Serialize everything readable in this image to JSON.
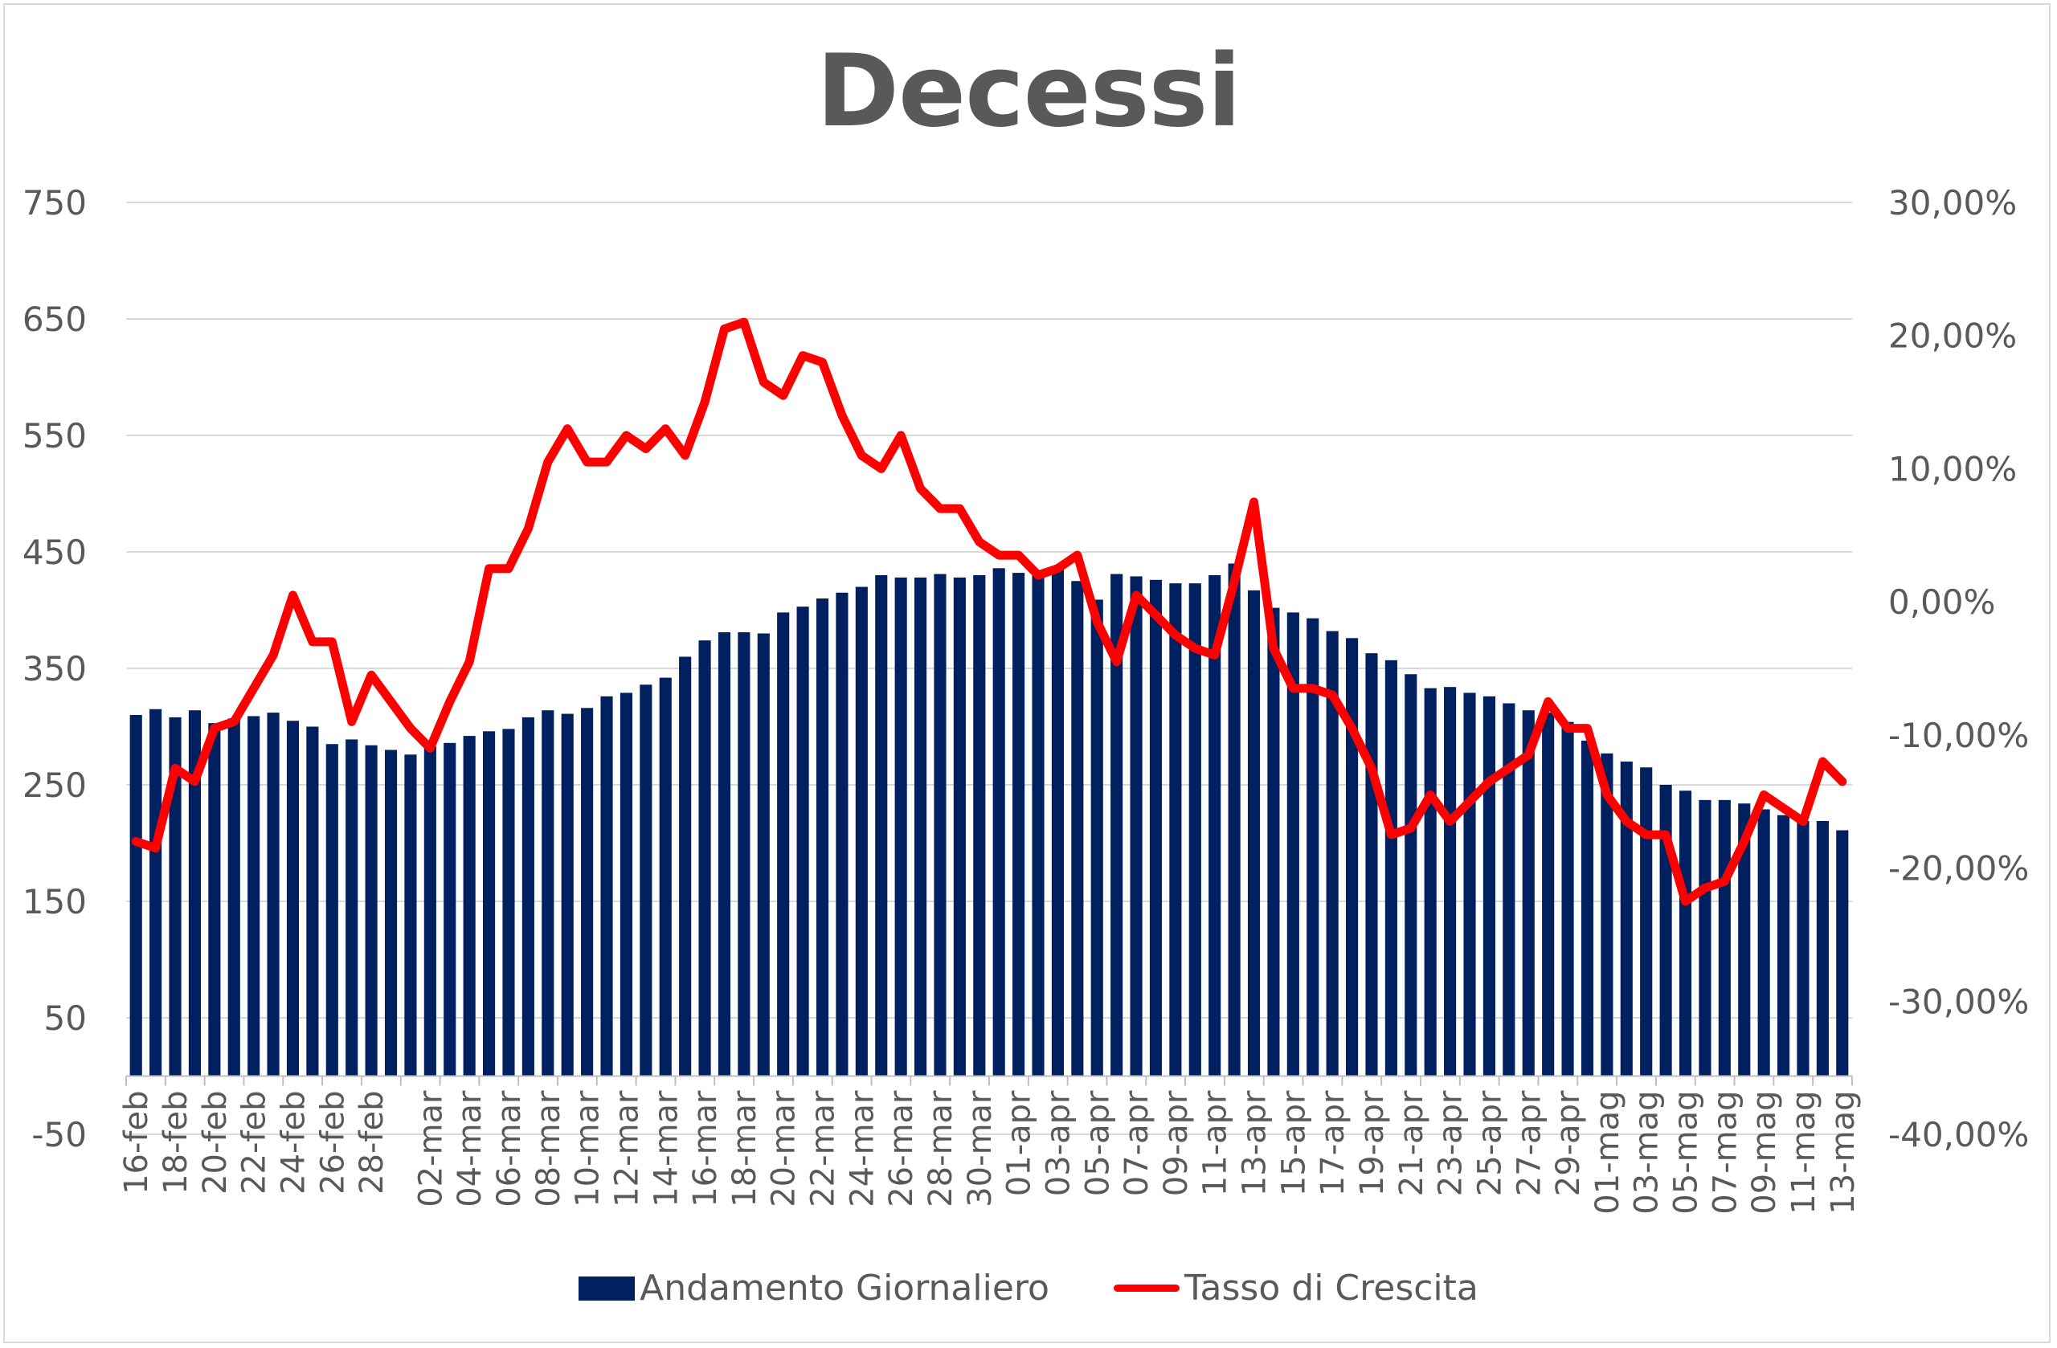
{
  "chart_data": {
    "type": "bar",
    "title": "Decessi",
    "categories": [
      "16-feb",
      "17-feb",
      "18-feb",
      "19-feb",
      "20-feb",
      "21-feb",
      "22-feb",
      "23-feb",
      "24-feb",
      "25-feb",
      "26-feb",
      "27-feb",
      "28-feb",
      "29-feb",
      "01-mar",
      "02-mar",
      "03-mar",
      "04-mar",
      "05-mar",
      "06-mar",
      "07-mar",
      "08-mar",
      "09-mar",
      "10-mar",
      "11-mar",
      "12-mar",
      "13-mar",
      "14-mar",
      "15-mar",
      "16-mar",
      "17-mar",
      "18-mar",
      "19-mar",
      "20-mar",
      "21-mar",
      "22-mar",
      "23-mar",
      "24-mar",
      "25-mar",
      "26-mar",
      "27-mar",
      "28-mar",
      "29-mar",
      "30-mar",
      "31-mar",
      "01-apr",
      "02-apr",
      "03-apr",
      "04-apr",
      "05-apr",
      "06-apr",
      "07-apr",
      "08-apr",
      "09-apr",
      "10-apr",
      "11-apr",
      "12-apr",
      "13-apr",
      "14-apr",
      "15-apr",
      "16-apr",
      "17-apr",
      "18-apr",
      "19-apr",
      "20-apr",
      "21-apr",
      "22-apr",
      "23-apr",
      "24-apr",
      "25-apr",
      "26-apr",
      "27-apr",
      "28-apr",
      "29-apr",
      "30-apr",
      "01-mag",
      "02-mag",
      "03-mag",
      "04-mag",
      "05-mag",
      "06-mag",
      "07-mag",
      "08-mag",
      "09-mag",
      "10-mag",
      "11-mag",
      "12-mag",
      "13-mag"
    ],
    "tick_labels": [
      "16-feb",
      "18-feb",
      "20-feb",
      "22-feb",
      "24-feb",
      "26-feb",
      "28-feb",
      "02-mar",
      "04-mar",
      "06-mar",
      "08-mar",
      "10-mar",
      "12-mar",
      "14-mar",
      "16-mar",
      "18-mar",
      "20-mar",
      "22-mar",
      "24-mar",
      "26-mar",
      "28-mar",
      "30-mar",
      "01-apr",
      "03-apr",
      "05-apr",
      "07-apr",
      "09-apr",
      "11-apr",
      "13-apr",
      "15-apr",
      "17-apr",
      "19-apr",
      "21-apr",
      "23-apr",
      "25-apr",
      "27-apr",
      "29-apr",
      "01-mag",
      "03-mag",
      "05-mag",
      "07-mag",
      "09-mag",
      "11-mag",
      "13-mag"
    ],
    "series": [
      {
        "name": "Andamento Giornaliero",
        "type": "bar",
        "axis": "left",
        "color": "#002060",
        "values": [
          310,
          315,
          308,
          314,
          303,
          307,
          309,
          312,
          305,
          300,
          285,
          289,
          284,
          280,
          276,
          283,
          286,
          292,
          296,
          298,
          308,
          314,
          311,
          316,
          326,
          329,
          336,
          342,
          360,
          374,
          381,
          381,
          380,
          398,
          403,
          410,
          415,
          420,
          430,
          428,
          428,
          431,
          428,
          430,
          436,
          432,
          430,
          435,
          425,
          409,
          431,
          429,
          426,
          423,
          423,
          430,
          440,
          417,
          402,
          398,
          393,
          382,
          376,
          363,
          357,
          345,
          333,
          334,
          329,
          326,
          320,
          314,
          312,
          304,
          288,
          277,
          270,
          265,
          250,
          245,
          237,
          237,
          234,
          229,
          224,
          219,
          219,
          211
        ]
      },
      {
        "name": "Tasso di Crescita",
        "type": "line",
        "axis": "right",
        "color": "#ff0000",
        "values": [
          -18.0,
          -18.5,
          -12.5,
          -13.5,
          -9.5,
          -9.0,
          -6.5,
          -4.0,
          0.5,
          -3.0,
          -3.0,
          -9.0,
          -5.5,
          -7.5,
          -9.5,
          -11.0,
          -7.5,
          -4.5,
          2.5,
          2.5,
          5.5,
          10.5,
          13.0,
          10.5,
          10.5,
          12.5,
          11.5,
          13.0,
          11.0,
          15.0,
          20.5,
          21.0,
          16.5,
          15.5,
          18.5,
          18.0,
          14.0,
          11.0,
          10.0,
          12.5,
          8.5,
          7.0,
          7.0,
          4.5,
          3.5,
          3.5,
          2.0,
          2.5,
          3.5,
          -1.5,
          -4.5,
          0.5,
          -1.0,
          -2.5,
          -3.5,
          -4.0,
          1.5,
          7.5,
          -3.5,
          -6.5,
          -6.5,
          -7.0,
          -9.5,
          -12.5,
          -17.5,
          -17.0,
          -14.5,
          -16.5,
          -15.0,
          -13.5,
          -12.5,
          -11.5,
          -7.5,
          -9.5,
          -9.5,
          -14.5,
          -16.5,
          -17.5,
          -17.5,
          -22.5,
          -21.5,
          -21.0,
          -18.0,
          -14.5,
          -15.5,
          -16.5,
          -12.0,
          -13.5
        ]
      }
    ],
    "y_left": {
      "min": -50,
      "max": 750,
      "ticks": [
        "750",
        "650",
        "550",
        "450",
        "350",
        "250",
        "150",
        "50",
        "-50"
      ]
    },
    "y_right": {
      "min": -40,
      "max": 30,
      "unit": "%",
      "ticks": [
        "30,00%",
        "20,00%",
        "10,00%",
        "0,00%",
        "-10,00%",
        "-20,00%",
        "-30,00%",
        "-40,00%"
      ]
    },
    "grid": true,
    "legend_position": "bottom"
  }
}
